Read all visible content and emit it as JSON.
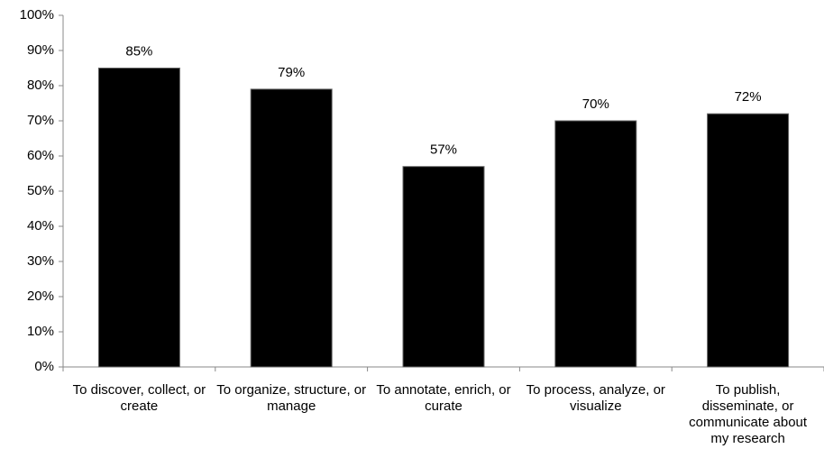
{
  "chart_data": {
    "type": "bar",
    "categories": [
      "To discover, collect, or create",
      "To organize, structure, or manage",
      "To annotate, enrich, or curate",
      "To process, analyze, or visualize",
      "To publish, disseminate, or communicate about my research"
    ],
    "values": [
      85,
      79,
      57,
      70,
      72
    ],
    "value_labels": [
      "85%",
      "79%",
      "57%",
      "70%",
      "72%"
    ],
    "color": "#000000",
    "ylim": [
      0,
      100
    ],
    "yticks": [
      {
        "value": 0,
        "label": "0%"
      },
      {
        "value": 10,
        "label": "10%"
      },
      {
        "value": 20,
        "label": "20%"
      },
      {
        "value": 30,
        "label": "30%"
      },
      {
        "value": 40,
        "label": "40%"
      },
      {
        "value": 50,
        "label": "50%"
      },
      {
        "value": 60,
        "label": "60%"
      },
      {
        "value": 70,
        "label": "70%"
      },
      {
        "value": 80,
        "label": "80%"
      },
      {
        "value": 90,
        "label": "90%"
      },
      {
        "value": 100,
        "label": "100%"
      }
    ],
    "grid": false
  }
}
